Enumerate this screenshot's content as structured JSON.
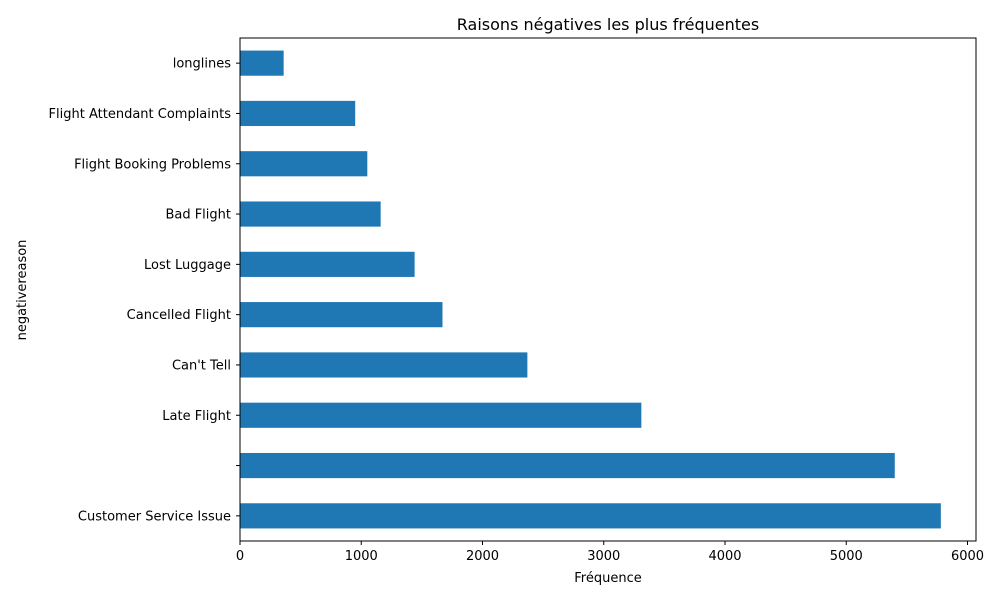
{
  "chart_data": {
    "type": "bar",
    "orientation": "horizontal",
    "title": "Raisons négatives les plus fréquentes",
    "xlabel": "Fréquence",
    "ylabel": "negativereason",
    "categories": [
      "Customer Service Issue",
      "",
      "Late Flight",
      "Can't Tell",
      "Cancelled Flight",
      "Lost Luggage",
      "Bad Flight",
      "Flight Booking Problems",
      "Flight Attendant Complaints",
      "longlines"
    ],
    "values": [
      5780,
      5400,
      3310,
      2370,
      1670,
      1440,
      1160,
      1050,
      950,
      360
    ],
    "xlim": [
      0,
      6070
    ],
    "xticks": [
      0,
      1000,
      2000,
      3000,
      4000,
      5000,
      6000
    ],
    "grid": false,
    "bar_color": "#1f77b4"
  }
}
